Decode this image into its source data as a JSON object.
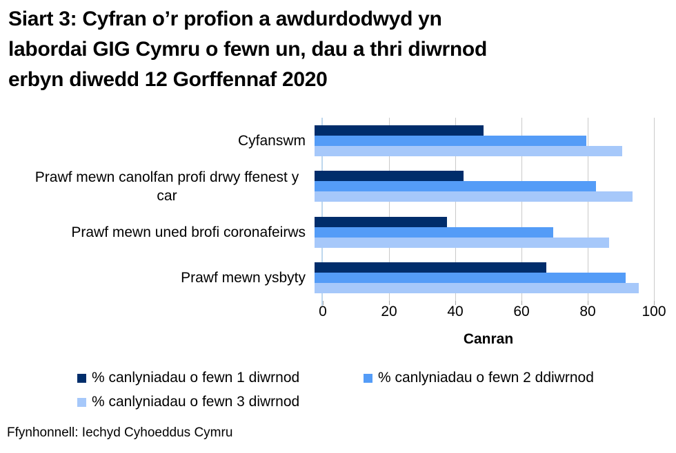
{
  "title": {
    "lines": [
      "Siart 3: Cyfran o’r profion a awdurdodwyd yn",
      "labordai GIG Cymru o fewn un, dau a thri diwrnod",
      "erbyn diwedd 12 Gorffennaf 2020"
    ]
  },
  "chart_data": {
    "type": "bar",
    "orientation": "horizontal",
    "categories": [
      "Cyfanswm",
      "Prawf mewn canolfan profi drwy ffenest y car",
      "Prawf mewn uned brofi coronafeirws",
      "Prawf mewn ysbyty"
    ],
    "series": [
      {
        "name": "% canlyniadau o fewn 1 diwrnod",
        "color": "#002d6b",
        "values": [
          51,
          45,
          40,
          70
        ]
      },
      {
        "name": "% canlyniadau o fewn 2 ddiwrnod",
        "color": "#549cf7",
        "values": [
          82,
          85,
          72,
          94
        ]
      },
      {
        "name": "% canlyniadau o fewn 3 diwrnod",
        "color": "#a6c8fa",
        "values": [
          93,
          96,
          89,
          98
        ]
      }
    ],
    "xlabel": "Canran",
    "xlim": [
      0,
      100
    ],
    "xticks": [
      0,
      20,
      40,
      60,
      80,
      100
    ],
    "grid": true,
    "legend_position": "bottom",
    "style": {
      "gridline_color": "#c9c9c9",
      "tick_color": "#a6a6a6",
      "axis_line_color": "#bdd7ee"
    }
  },
  "source": "Ffynhonnell: Iechyd Cyhoeddus Cymru"
}
